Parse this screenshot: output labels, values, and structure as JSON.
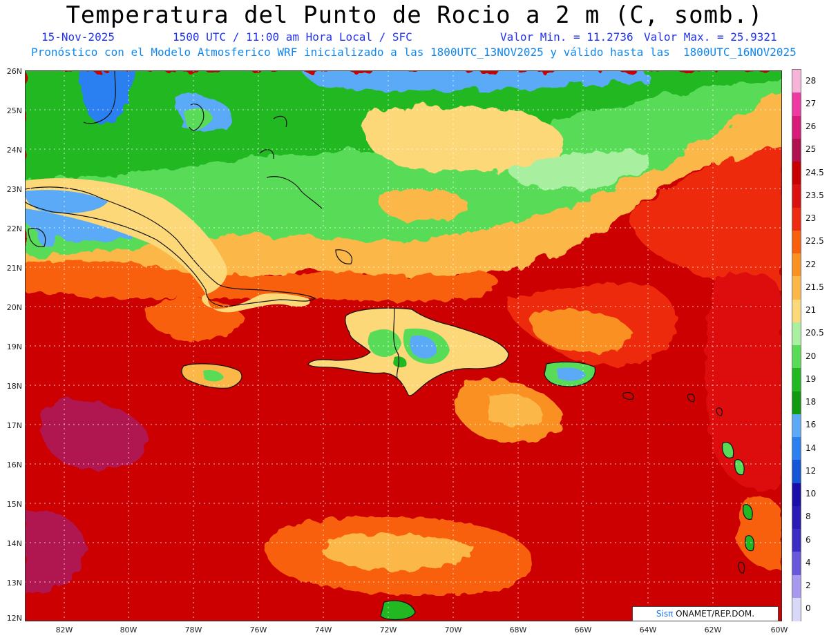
{
  "header": {
    "title": "Temperatura del Punto de Rocio a 2 m (C, somb.)",
    "date": "15-Nov-2025",
    "time": "1500 UTC / 11:00 am Hora Local / SFC",
    "valmin": "Valor Min. = 11.2736",
    "valmax": "Valor Max. = 25.9321",
    "model_line": "Pronóstico con el Modelo Atmosferico WRF inicializado a las 1800UTC_13NOV2025 y válido hasta las  1800UTC_16NOV2025"
  },
  "axes": {
    "lat_labels": [
      "26N",
      "25N",
      "24N",
      "23N",
      "22N",
      "21N",
      "20N",
      "19N",
      "18N",
      "17N",
      "16N",
      "15N",
      "14N",
      "13N",
      "12N"
    ],
    "lon_labels": [
      "82W",
      "80W",
      "78W",
      "76W",
      "74W",
      "72W",
      "70W",
      "68W",
      "66W",
      "64W",
      "62W",
      "60W"
    ]
  },
  "colorbar": {
    "labels": [
      "28",
      "27",
      "26",
      "25",
      "24.5",
      "23.5",
      "23",
      "22.5",
      "22",
      "21.5",
      "21",
      "20.5",
      "20",
      "19",
      "18",
      "16",
      "14",
      "12",
      "10",
      "8",
      "6",
      "4",
      "2",
      "0"
    ],
    "colors": [
      "#f7b3d8",
      "#ee3aa2",
      "#d81a7a",
      "#b0124f",
      "#c80000",
      "#dd1010",
      "#ee2a10",
      "#f86010",
      "#fa9020",
      "#fbb848",
      "#fcd878",
      "#a8f0a0",
      "#58dc58",
      "#22b822",
      "#109a10",
      "#5aaaf8",
      "#2a80f0",
      "#1456d8",
      "#1a0fa8",
      "#2a1ab6",
      "#3c2ec4",
      "#6a58dc",
      "#a898f0",
      "#d8d8f8"
    ]
  },
  "credit": {
    "brand": "Sisπ",
    "text": " ONAMET/REP.DOM."
  }
}
